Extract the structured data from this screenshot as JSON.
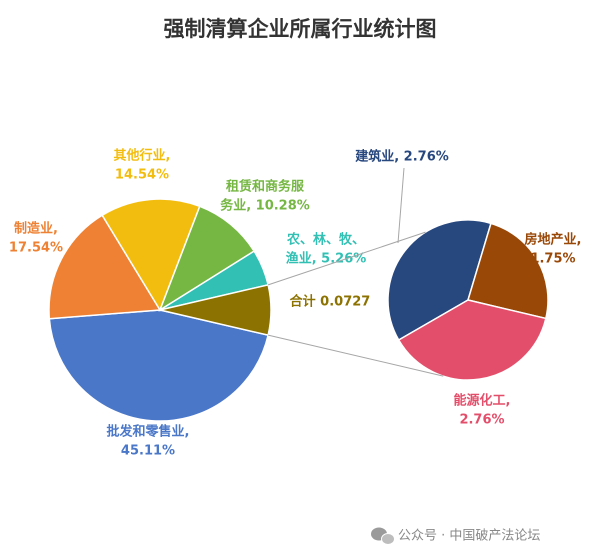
{
  "chart_data": {
    "type": "pie-of-pie",
    "title": "强制清算企业所属行业统计图",
    "main": {
      "values": [
        45.11,
        17.54,
        14.54,
        10.28,
        5.26,
        7.27
      ],
      "labels": [
        [
          "批发和零售业,",
          "45.11%"
        ],
        [
          "制造业,",
          "17.54%"
        ],
        [
          "其他行业,",
          "14.54%"
        ],
        [
          "租赁和商务服",
          "务业, 10.28%"
        ],
        [
          "农、林、牧、",
          "渔业, 5.26%"
        ],
        [
          "合计 0.0727"
        ]
      ],
      "colors": [
        "#4a77c8",
        "#ee8133",
        "#f3bd10",
        "#76b744",
        "#33c0b4",
        "#8c7200"
      ]
    },
    "secondary": {
      "values": [
        2.76,
        1.75,
        2.76
      ],
      "labels": [
        [
          "建筑业, 2.76%"
        ],
        [
          "房地产业,",
          "1.75%"
        ],
        [
          "能源化工,",
          "2.76%"
        ]
      ],
      "colors": [
        "#27477f",
        "#9a4807",
        "#e34f6b"
      ]
    },
    "annotations": [
      "公众号 · 中国破产法论坛"
    ]
  }
}
